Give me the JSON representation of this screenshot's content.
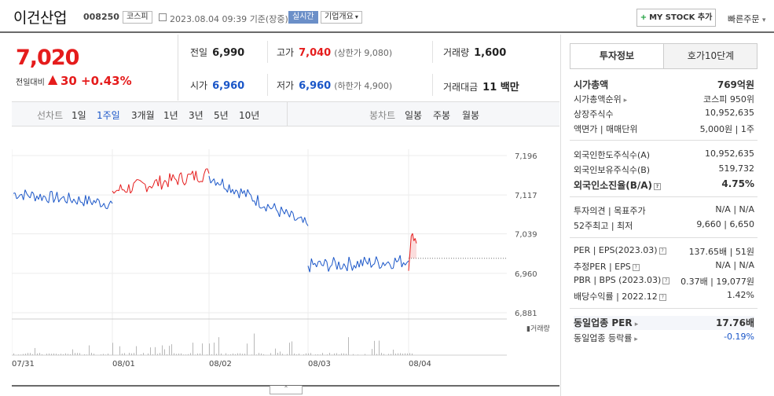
{
  "header": {
    "company": "이건산업",
    "code": "008250",
    "market": "코스피",
    "datetime": "2023.08.04 09:39",
    "basis": "기준(장중)",
    "live_label": "실시간",
    "overview_label": "기업개요",
    "overview_arrow": "▾",
    "mystock_plus": "+",
    "mystock_label": "MY STOCK 추가",
    "quick_label": "빠른주문",
    "quick_arrow": "▾"
  },
  "price": {
    "current": "7,020",
    "change_label": "전일대비",
    "change_arrow": "▲",
    "change": "30",
    "change_pct": "+0.43%"
  },
  "quote": {
    "prev_label": "전일",
    "prev": "6,990",
    "high_label": "고가",
    "high": "7,040",
    "upper_limit": "(상한가 9,080)",
    "volume_label": "거래량",
    "volume": "1,600",
    "open_label": "시가",
    "open": "6,960",
    "low_label": "저가",
    "low": "6,960",
    "lower_limit": "(하한가 4,900)",
    "amount_label": "거래대금",
    "amount": "11 백만"
  },
  "chart_tabs": {
    "line_group": "선차트",
    "line_items": [
      "1일",
      "1주일",
      "3개월",
      "1년",
      "3년",
      "5년",
      "10년"
    ],
    "line_active": "1주일",
    "candle_group": "봉차트",
    "candle_items": [
      "일봉",
      "주봉",
      "월봉"
    ]
  },
  "chart_data": {
    "type": "line",
    "y_ticks": [
      "7,196",
      "7,117",
      "7,039",
      "6,960",
      "6,881"
    ],
    "ylim": [
      6881,
      7196
    ],
    "x_ticks": [
      "07/31",
      "08/01",
      "08/02",
      "08/03",
      "08/04"
    ],
    "volume_label": "거래량",
    "prev_close": 6990,
    "colors": {
      "up": "#e51c1c",
      "down": "#1a56c8"
    }
  },
  "invest_tabs": {
    "active": "투자정보",
    "inactive": "호가10단계"
  },
  "invest": {
    "market_cap_label": "시가총액",
    "market_cap": "769억원",
    "rank_label": "시가총액순위",
    "rank": "코스피 950위",
    "shares_label": "상장주식수",
    "shares": "10,952,635",
    "face_label": "액면가 | 매매단위",
    "face": "5,000원 | 1주",
    "foreign_limit_label": "외국인한도주식수(A)",
    "foreign_limit": "10,952,635",
    "foreign_hold_label": "외국인보유주식수(B)",
    "foreign_hold": "519,732",
    "foreign_ratio_label": "외국인소진율(B/A)",
    "foreign_ratio": "4.75%",
    "opinion_label": "투자의견 | 목표주가",
    "opinion": "N/A | N/A",
    "w52_label": "52주최고 | 최저",
    "w52": "9,660 | 6,650",
    "per_label": "PER | EPS(2023.03)",
    "per": "137.65배 | 51원",
    "est_label": "추정PER | EPS",
    "est": "N/A | N/A",
    "pbr_label": "PBR | BPS (2023.03)",
    "pbr": "0.37배 | 19,077원",
    "div_label": "배당수익률 | 2022.12",
    "div": "1.42%",
    "sector_per_label": "동일업종 PER",
    "sector_per": "17.76배",
    "sector_rate_label": "동일업종 등락률",
    "sector_rate": "-0.19%"
  }
}
